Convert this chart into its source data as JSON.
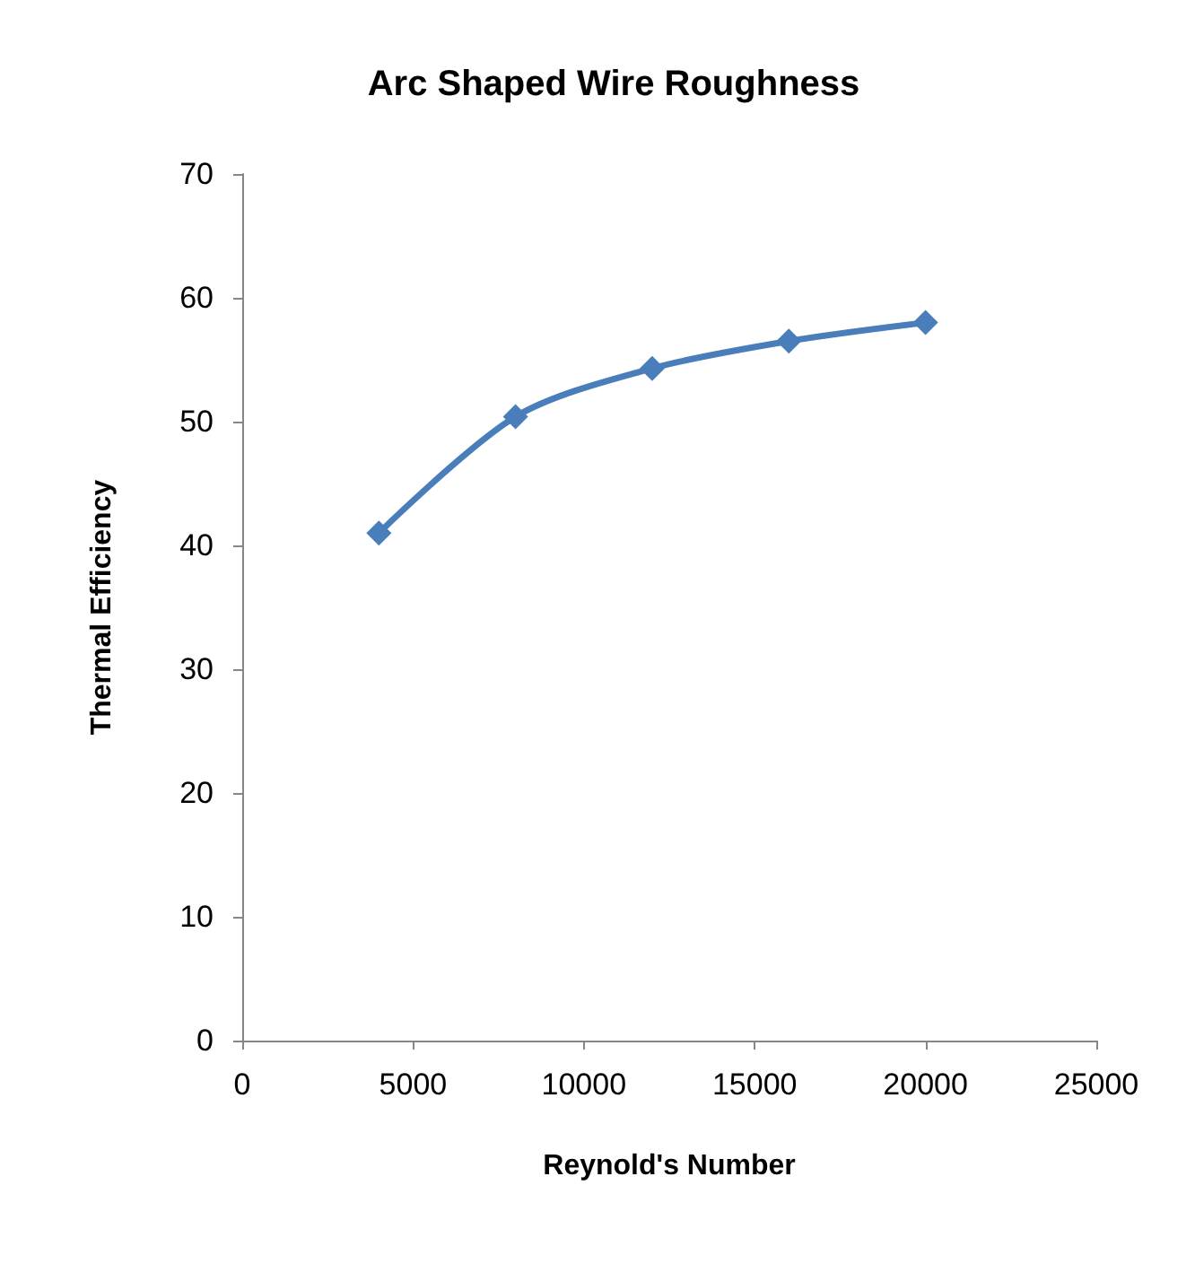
{
  "chart_data": {
    "type": "line",
    "title": "Arc Shaped Wire Roughness",
    "xlabel": "Reynold's Number",
    "ylabel": "Thermal Efficiency",
    "x": [
      4000,
      8000,
      12000,
      16000,
      20000
    ],
    "series": [
      {
        "color": "#4a7ebb",
        "values": [
          41.0,
          50.4,
          54.3,
          56.5,
          58.0
        ]
      }
    ],
    "xlim": [
      0,
      25000
    ],
    "xticks": [
      0,
      5000,
      10000,
      15000,
      20000,
      25000
    ],
    "ylim": [
      0,
      70
    ],
    "yticks": [
      0,
      10,
      20,
      30,
      40,
      50,
      60,
      70
    ],
    "grid": false,
    "marker": "diamond",
    "line_style": "solid"
  }
}
